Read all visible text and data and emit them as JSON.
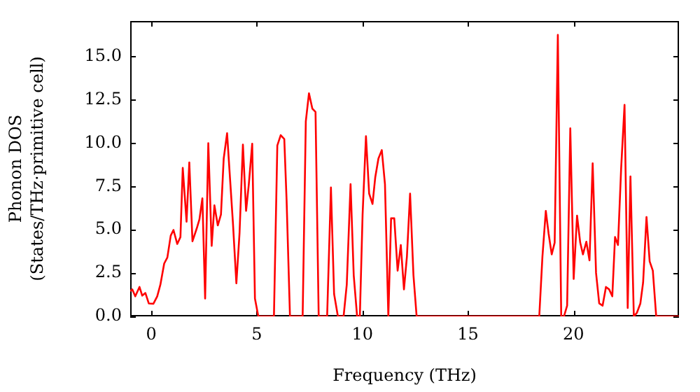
{
  "chart_data": {
    "type": "line",
    "xlabel": "Frequency (THz)",
    "ylabel": "Phonon DOS\n(States/THz·primitive cell)",
    "xlim": [
      -1,
      25
    ],
    "ylim": [
      0,
      17.05
    ],
    "xticks": [
      0,
      5,
      10,
      15,
      20
    ],
    "yticks": [
      {
        "value": 0,
        "label": "0.0"
      },
      {
        "value": 2.5,
        "label": "2.5"
      },
      {
        "value": 5,
        "label": "5.0"
      },
      {
        "value": 7.5,
        "label": "7.5"
      },
      {
        "value": 10,
        "label": "10.0"
      },
      {
        "value": 12.5,
        "label": "12.5"
      },
      {
        "value": 15,
        "label": "15.0"
      }
    ],
    "grid": false,
    "legend": false,
    "marker": "none",
    "line_style": "solid",
    "series": [
      {
        "color": "#ff0000",
        "x": [
          -1,
          -0.9,
          -0.76,
          -0.56,
          -0.43,
          -0.28,
          -0.12,
          0.1,
          0.28,
          0.43,
          0.61,
          0.76,
          0.92,
          1.05,
          1.23,
          1.38,
          1.49,
          1.67,
          1.8,
          1.95,
          2.15,
          2.28,
          2.42,
          2.55,
          2.7,
          2.86,
          2.99,
          3.15,
          3.3,
          3.43,
          3.59,
          3.74,
          3.87,
          4.03,
          4.18,
          4.34,
          4.49,
          4.62,
          4.78,
          4.91,
          5.07,
          5.81,
          5.97,
          6.13,
          6.3,
          6.41,
          6.57,
          7.17,
          7.32,
          7.47,
          7.63,
          7.78,
          7.93,
          8.33,
          8.51,
          8.66,
          8.84,
          9.11,
          9.26,
          9.44,
          9.59,
          9.75,
          9.88,
          10.01,
          10.17,
          10.32,
          10.48,
          10.61,
          10.76,
          10.92,
          11.07,
          11.23,
          11.36,
          11.51,
          11.67,
          11.82,
          11.97,
          12.11,
          12.26,
          12.42,
          12.57,
          18.38,
          18.53,
          18.69,
          18.82,
          18.97,
          19.11,
          19.26,
          19.42,
          19.55,
          19.7,
          19.85,
          20.01,
          20.17,
          20.32,
          20.45,
          20.61,
          20.76,
          20.91,
          21.07,
          21.22,
          21.38,
          21.54,
          21.69,
          21.84,
          21.97,
          22.11,
          22.26,
          22.42,
          22.57,
          22.7,
          22.86,
          23.01,
          23.17,
          23.3,
          23.46,
          23.61,
          23.76,
          23.92,
          25
        ],
        "values": [
          1.45,
          1.56,
          1.16,
          1.7,
          1.2,
          1.35,
          0.75,
          0.73,
          1.16,
          1.83,
          3.05,
          3.4,
          4.66,
          4.99,
          4.18,
          4.58,
          8.57,
          5.47,
          8.89,
          4.34,
          5.07,
          5.6,
          6.82,
          1.03,
          10.0,
          4.07,
          6.41,
          5.25,
          5.88,
          9.11,
          10.57,
          7.76,
          5.34,
          1.91,
          4.8,
          9.92,
          6.09,
          7.63,
          9.97,
          1.03,
          0,
          0,
          9.86,
          10.46,
          10.24,
          6.68,
          0,
          0,
          11.26,
          12.88,
          11.99,
          11.8,
          0,
          0,
          7.44,
          1.29,
          0,
          0,
          1.83,
          7.63,
          2.37,
          0,
          0,
          5.88,
          10.4,
          7.09,
          6.49,
          8.03,
          9.11,
          9.6,
          7.63,
          0,
          5.66,
          5.66,
          2.64,
          4.12,
          1.56,
          3.45,
          7.09,
          2.37,
          0,
          0,
          3.45,
          6.09,
          4.8,
          3.58,
          4.26,
          16.25,
          0,
          0,
          0.62,
          10.86,
          2.16,
          5.82,
          4.26,
          3.58,
          4.31,
          3.23,
          8.84,
          2.51,
          0.75,
          0.62,
          1.7,
          1.56,
          1.16,
          4.58,
          4.12,
          8.57,
          12.21,
          0.49,
          8.08,
          0,
          0.22,
          0.75,
          1.96,
          5.74,
          3.18,
          2.64,
          0,
          0
        ]
      }
    ]
  }
}
